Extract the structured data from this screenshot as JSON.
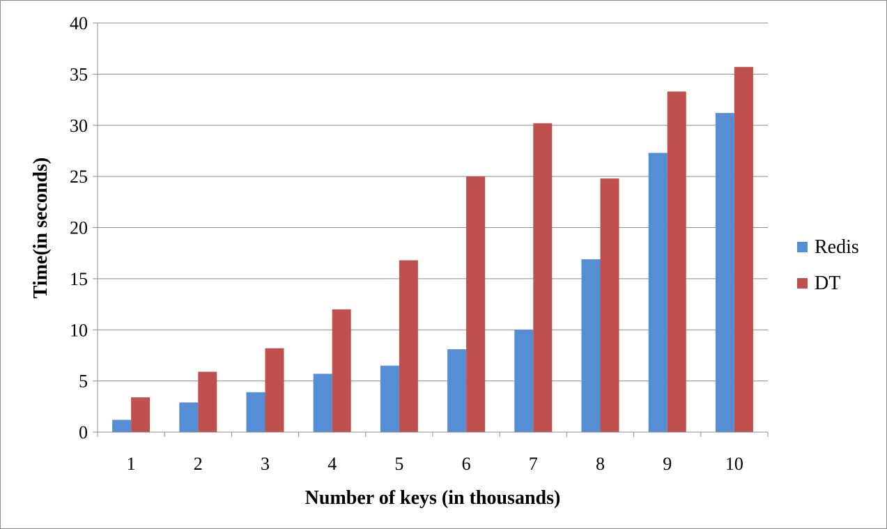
{
  "chart_data": {
    "type": "bar",
    "title": "",
    "xlabel": "Number of keys (in thousands)",
    "ylabel": "Time(in seconds)",
    "categories": [
      "1",
      "2",
      "3",
      "4",
      "5",
      "6",
      "7",
      "8",
      "9",
      "10"
    ],
    "ylim": [
      0,
      40
    ],
    "yticks": [
      "0",
      "5",
      "10",
      "15",
      "20",
      "25",
      "30",
      "35",
      "40"
    ],
    "grid": true,
    "legend_position": "right",
    "series": [
      {
        "name": "Redis",
        "color": "#558ED5",
        "values": [
          1.2,
          2.9,
          3.9,
          5.7,
          6.5,
          8.1,
          10.0,
          16.9,
          27.3,
          31.2
        ]
      },
      {
        "name": "DT",
        "color": "#C0504D",
        "values": [
          3.4,
          5.9,
          8.2,
          12.0,
          16.8,
          25.0,
          30.2,
          24.8,
          33.3,
          35.7
        ]
      }
    ]
  }
}
